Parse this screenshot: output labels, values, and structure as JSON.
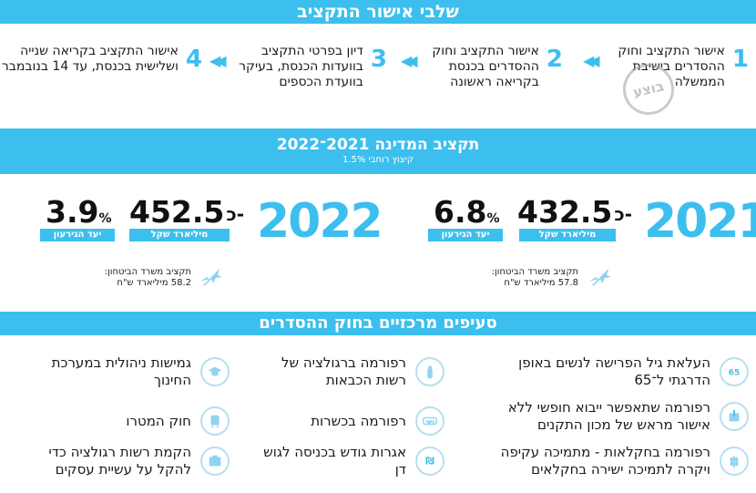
{
  "stages_section": {
    "title": "שלבי אישור התקציב",
    "stages": [
      {
        "num": "1",
        "text": "אישור התקציב וחוק ההסדרים בישיבת הממשלה"
      },
      {
        "num": "2",
        "text": "אישור התקציב וחוק ההסדרים בכנסת בקריאה ראשונה"
      },
      {
        "num": "3",
        "text": "דיון בפרטי התקציב בוועדות הכנסת, בעיקר בוועדת הכספים"
      },
      {
        "num": "4",
        "text": "אישור התקציב בקריאה שנייה ושלישית בכנסת, עד 14 בנובמבר"
      }
    ],
    "stamp_text": "בוצע"
  },
  "budget_section": {
    "title": "תקציב המדינה 2021־2022",
    "subtitle": "קיצוץ רוחבי 1.5%",
    "years": [
      {
        "year": "2021",
        "amount_prefix": "כ-",
        "amount": "432.5",
        "amount_unit": "מיליארד שקל",
        "deficit": "6.8",
        "deficit_sign": "%",
        "deficit_label": "יעד הגירעון",
        "defense_label": "תקציב משרד הביטחון:",
        "defense_value": "57.8 מיליארד ש\"ח"
      },
      {
        "year": "2022",
        "amount_prefix": "כ-",
        "amount": "452.5",
        "amount_unit": "מיליארד שקל",
        "deficit": "3.9",
        "deficit_sign": "%",
        "deficit_label": "יעד הגירעון",
        "defense_label": "תקציב משרד הביטחון:",
        "defense_value": "58.2 מיליארד ש\"ח"
      }
    ]
  },
  "clauses_section": {
    "title": "סעיפים מרכזיים בחוק ההסדרים",
    "items": [
      {
        "icon": "age-65-icon",
        "text": "העלאת גיל הפרישה לנשים באופן הדרגתי ל־65"
      },
      {
        "icon": "fire-extinguisher-icon",
        "text": "רפורמה ברגולציה של רשות הכבאות"
      },
      {
        "icon": "graduation-cap-icon",
        "text": "גמישות ניהולית במערכת החינוך"
      },
      {
        "icon": "box-import-icon",
        "text": "רפורמה שתאפשר ייבוא חופשי ללא אישור מראש של מכון התקנים"
      },
      {
        "icon": "kosher-icon",
        "text": "רפורמה בכשרות"
      },
      {
        "icon": "train-icon",
        "text": "חוק המטרו"
      },
      {
        "icon": "wheat-icon",
        "text": "רפורמה בחקלאות - מתמיכה עקיפה ויקרה לתמיכה ישירה בחקלאים"
      },
      {
        "icon": "shekel-icon",
        "text": "אגרות גודש בכניסה לגוש דן"
      },
      {
        "icon": "regulation-icon",
        "text": "הקמת רשות רגולציה כדי להקל על עשיית עסקים"
      }
    ]
  },
  "colors": {
    "accent": "#3cbfee",
    "text": "#1a1a1a"
  }
}
